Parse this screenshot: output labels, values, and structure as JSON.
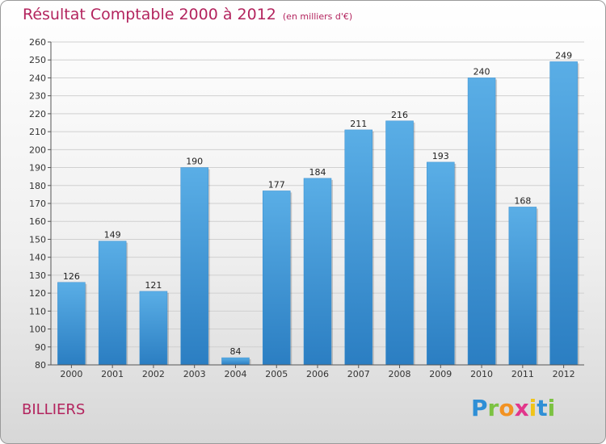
{
  "title": "Résultat Comptable 2000 à 2012",
  "title_unit": "(en milliers d'€)",
  "place": "BILLIERS",
  "logo": {
    "text": "Proxiti",
    "letters": [
      "P",
      "r",
      "o",
      "x",
      "i",
      "t",
      "i"
    ]
  },
  "colors": {
    "title": "#b3245e",
    "bar_top": "#5aaee6",
    "bar_bottom": "#2b7ec2"
  },
  "chart_data": {
    "type": "bar",
    "title": "Résultat Comptable 2000 à 2012",
    "xlabel": "",
    "ylabel": "",
    "ylim": [
      80,
      260
    ],
    "ytick_step": 10,
    "grid": true,
    "categories": [
      "2000",
      "2001",
      "2002",
      "2003",
      "2004",
      "2005",
      "2006",
      "2007",
      "2008",
      "2009",
      "2010",
      "2011",
      "2012"
    ],
    "values": [
      126,
      149,
      121,
      190,
      84,
      177,
      184,
      211,
      216,
      193,
      240,
      168,
      249
    ]
  }
}
